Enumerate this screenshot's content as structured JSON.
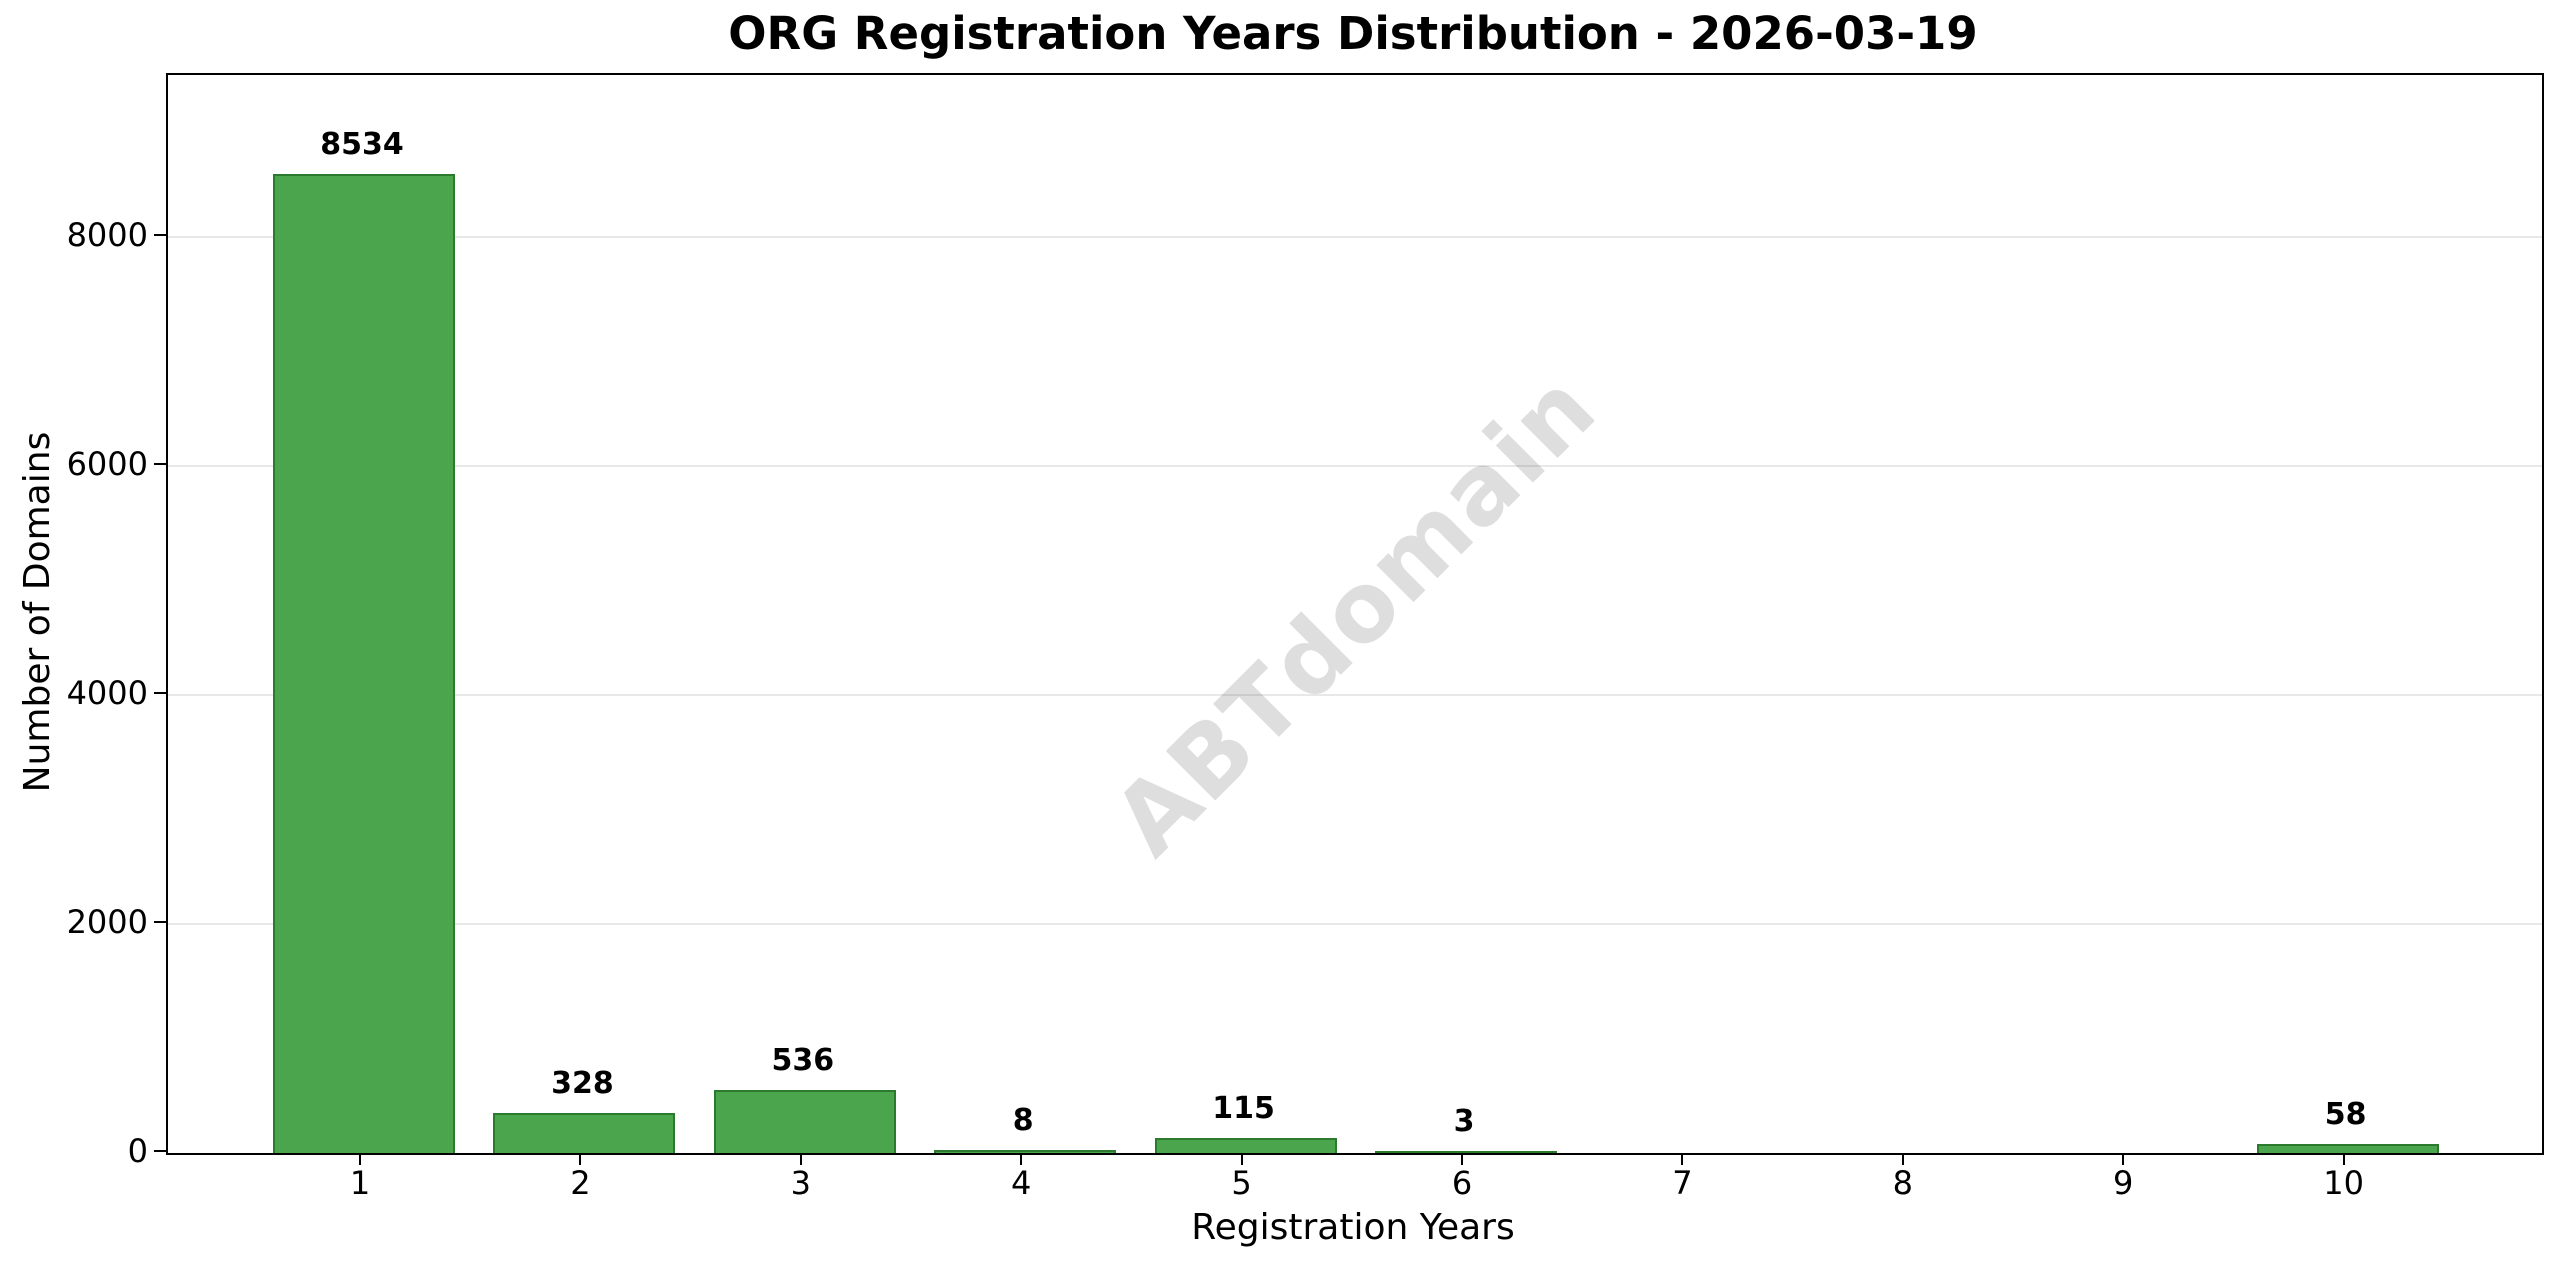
{
  "watermark": "ABTdomain",
  "chart_data": {
    "type": "bar",
    "title": "ORG Registration Years Distribution - 2026-03-19",
    "xlabel": "Registration Years",
    "ylabel": "Number of Domains",
    "categories": [
      1,
      2,
      3,
      4,
      5,
      6,
      7,
      8,
      9,
      10
    ],
    "values": [
      8534,
      328,
      536,
      8,
      115,
      3,
      0,
      0,
      0,
      58
    ],
    "value_labels_shown": [
      8534,
      328,
      536,
      8,
      115,
      3,
      58
    ],
    "yticks": [
      0,
      2000,
      4000,
      6000,
      8000
    ],
    "ylim": [
      0,
      9414
    ],
    "grid": true,
    "legend": "none",
    "bar_color": "#4aa54c",
    "bar_edge_color": "#2b7a2e",
    "grid_color": "#e8e8e8",
    "watermark_color": "rgba(0,0,0,0.13)",
    "background_color": "#ffffff"
  }
}
